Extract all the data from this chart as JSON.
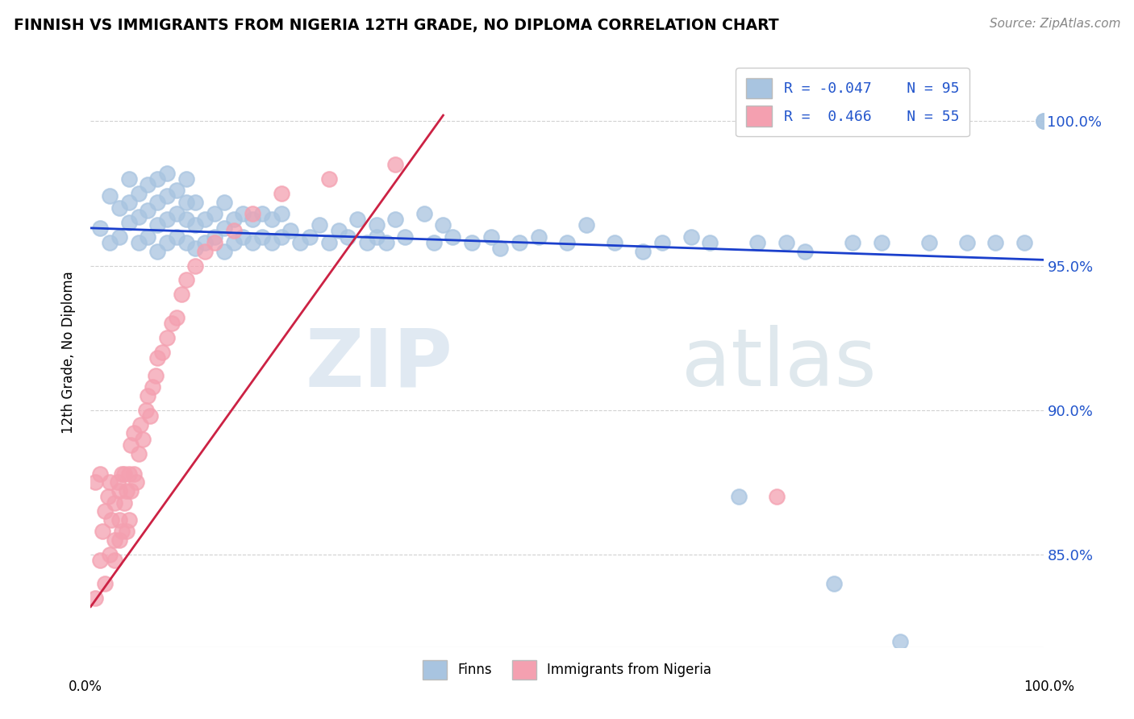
{
  "title": "FINNISH VS IMMIGRANTS FROM NIGERIA 12TH GRADE, NO DIPLOMA CORRELATION CHART",
  "source_text": "Source: ZipAtlas.com",
  "ylabel": "12th Grade, No Diploma",
  "ytick_labels": [
    "85.0%",
    "90.0%",
    "95.0%",
    "100.0%"
  ],
  "ytick_values": [
    0.85,
    0.9,
    0.95,
    1.0
  ],
  "xmin": 0.0,
  "xmax": 1.0,
  "ymin": 0.818,
  "ymax": 1.022,
  "legend_r1": "R = -0.047",
  "legend_n1": "N = 95",
  "legend_r2": "R =  0.466",
  "legend_n2": "N = 55",
  "blue_color": "#a8c4e0",
  "pink_color": "#f4a0b0",
  "blue_line_color": "#1a3fcc",
  "pink_line_color": "#cc2244",
  "legend_text_color": "#2255cc",
  "watermark_zip": "ZIP",
  "watermark_atlas": "atlas",
  "blue_dots_x": [
    0.01,
    0.02,
    0.02,
    0.03,
    0.03,
    0.04,
    0.04,
    0.04,
    0.05,
    0.05,
    0.05,
    0.06,
    0.06,
    0.06,
    0.07,
    0.07,
    0.07,
    0.07,
    0.08,
    0.08,
    0.08,
    0.08,
    0.09,
    0.09,
    0.09,
    0.1,
    0.1,
    0.1,
    0.1,
    0.11,
    0.11,
    0.11,
    0.12,
    0.12,
    0.13,
    0.13,
    0.14,
    0.14,
    0.14,
    0.15,
    0.15,
    0.16,
    0.16,
    0.17,
    0.17,
    0.18,
    0.18,
    0.19,
    0.19,
    0.2,
    0.2,
    0.21,
    0.22,
    0.23,
    0.24,
    0.25,
    0.26,
    0.27,
    0.28,
    0.29,
    0.3,
    0.3,
    0.31,
    0.32,
    0.33,
    0.35,
    0.36,
    0.37,
    0.38,
    0.4,
    0.42,
    0.43,
    0.45,
    0.47,
    0.5,
    0.52,
    0.55,
    0.58,
    0.6,
    0.63,
    0.65,
    0.68,
    0.7,
    0.73,
    0.75,
    0.78,
    0.8,
    0.83,
    0.85,
    0.88,
    0.92,
    0.95,
    0.98,
    1.0,
    1.0
  ],
  "blue_dots_y": [
    0.963,
    0.958,
    0.974,
    0.96,
    0.97,
    0.965,
    0.972,
    0.98,
    0.958,
    0.967,
    0.975,
    0.96,
    0.969,
    0.978,
    0.955,
    0.964,
    0.972,
    0.98,
    0.958,
    0.966,
    0.974,
    0.982,
    0.96,
    0.968,
    0.976,
    0.958,
    0.966,
    0.972,
    0.98,
    0.956,
    0.964,
    0.972,
    0.958,
    0.966,
    0.96,
    0.968,
    0.955,
    0.963,
    0.972,
    0.958,
    0.966,
    0.96,
    0.968,
    0.958,
    0.966,
    0.96,
    0.968,
    0.958,
    0.966,
    0.96,
    0.968,
    0.962,
    0.958,
    0.96,
    0.964,
    0.958,
    0.962,
    0.96,
    0.966,
    0.958,
    0.964,
    0.96,
    0.958,
    0.966,
    0.96,
    0.968,
    0.958,
    0.964,
    0.96,
    0.958,
    0.96,
    0.956,
    0.958,
    0.96,
    0.958,
    0.964,
    0.958,
    0.955,
    0.958,
    0.96,
    0.958,
    0.87,
    0.958,
    0.958,
    0.955,
    0.84,
    0.958,
    0.958,
    0.82,
    0.958,
    0.958,
    0.958,
    0.958,
    1.0,
    1.0
  ],
  "pink_dots_x": [
    0.005,
    0.005,
    0.01,
    0.01,
    0.012,
    0.015,
    0.015,
    0.018,
    0.02,
    0.02,
    0.022,
    0.025,
    0.025,
    0.025,
    0.028,
    0.03,
    0.03,
    0.03,
    0.033,
    0.033,
    0.035,
    0.035,
    0.038,
    0.038,
    0.04,
    0.04,
    0.042,
    0.042,
    0.045,
    0.045,
    0.048,
    0.05,
    0.052,
    0.055,
    0.058,
    0.06,
    0.062,
    0.065,
    0.068,
    0.07,
    0.075,
    0.08,
    0.085,
    0.09,
    0.095,
    0.1,
    0.11,
    0.12,
    0.13,
    0.15,
    0.17,
    0.2,
    0.25,
    0.32,
    0.72
  ],
  "pink_dots_y": [
    0.875,
    0.835,
    0.878,
    0.848,
    0.858,
    0.865,
    0.84,
    0.87,
    0.85,
    0.875,
    0.862,
    0.868,
    0.848,
    0.855,
    0.875,
    0.872,
    0.855,
    0.862,
    0.878,
    0.858,
    0.868,
    0.878,
    0.858,
    0.872,
    0.878,
    0.862,
    0.872,
    0.888,
    0.878,
    0.892,
    0.875,
    0.885,
    0.895,
    0.89,
    0.9,
    0.905,
    0.898,
    0.908,
    0.912,
    0.918,
    0.92,
    0.925,
    0.93,
    0.932,
    0.94,
    0.945,
    0.95,
    0.955,
    0.958,
    0.962,
    0.968,
    0.975,
    0.98,
    0.985,
    0.87
  ],
  "blue_trend_x": [
    0.0,
    1.0
  ],
  "blue_trend_y": [
    0.963,
    0.952
  ],
  "pink_trend_x": [
    0.0,
    0.37
  ],
  "pink_trend_y": [
    0.832,
    1.002
  ]
}
